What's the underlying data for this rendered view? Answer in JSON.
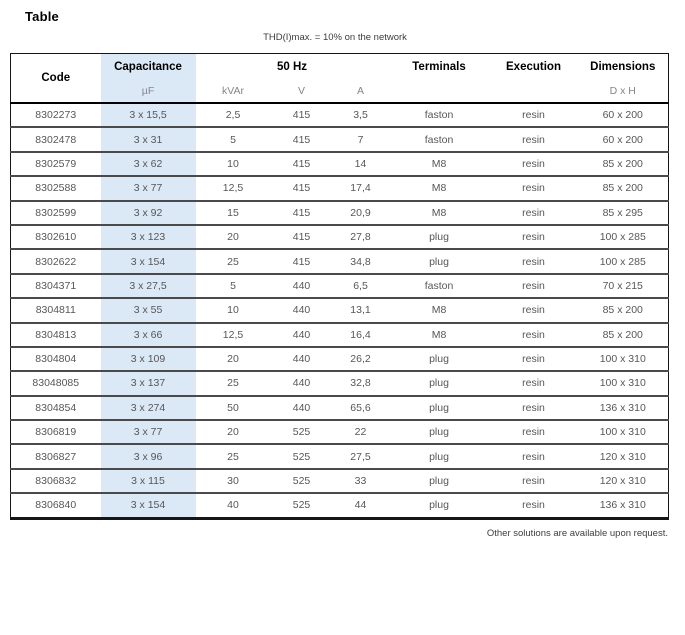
{
  "title": "Table",
  "note": "THD(I)max. = 10% on the network",
  "footer": "Other solutions are available upon request.",
  "colors": {
    "highlight_column": "#dbe8f5",
    "header_text": "#000000",
    "subheader_text": "#86868a",
    "body_text": "#57575a",
    "row_divider": "#4a4a4b",
    "outer_border": "#161616"
  },
  "table": {
    "header": {
      "code": "Code",
      "capacitance": "Capacitance",
      "freq": "50 Hz",
      "terminals": "Terminals",
      "execution": "Execution",
      "dimensions": "Dimensions",
      "sub": {
        "uF": "µF",
        "kvar": "kVAr",
        "v": "V",
        "a": "A",
        "dxh": "D x H"
      }
    },
    "rows": [
      [
        "8302273",
        "3 x 15,5",
        "2,5",
        "415",
        "3,5",
        "faston",
        "resin",
        "60 x 200"
      ],
      [
        "8302478",
        "3 x 31",
        "5",
        "415",
        "7",
        "faston",
        "resin",
        "60 x 200"
      ],
      [
        "8302579",
        "3 x 62",
        "10",
        "415",
        "14",
        "M8",
        "resin",
        "85 x 200"
      ],
      [
        "8302588",
        "3 x 77",
        "12,5",
        "415",
        "17,4",
        "M8",
        "resin",
        "85 x 200"
      ],
      [
        "8302599",
        "3 x 92",
        "15",
        "415",
        "20,9",
        "M8",
        "resin",
        "85 x 295"
      ],
      [
        "8302610",
        "3 x 123",
        "20",
        "415",
        "27,8",
        "plug",
        "resin",
        "100 x 285"
      ],
      [
        "8302622",
        "3 x 154",
        "25",
        "415",
        "34,8",
        "plug",
        "resin",
        "100 x 285"
      ],
      [
        "8304371",
        "3 x 27,5",
        "5",
        "440",
        "6,5",
        "faston",
        "resin",
        "70 x 215"
      ],
      [
        "8304811",
        "3 x 55",
        "10",
        "440",
        "13,1",
        "M8",
        "resin",
        "85 x 200"
      ],
      [
        "8304813",
        "3 x 66",
        "12,5",
        "440",
        "16,4",
        "M8",
        "resin",
        "85 x 200"
      ],
      [
        "8304804",
        "3 x 109",
        "20",
        "440",
        "26,2",
        "plug",
        "resin",
        "100 x 310"
      ],
      [
        "83048085",
        "3 x 137",
        "25",
        "440",
        "32,8",
        "plug",
        "resin",
        "100 x 310"
      ],
      [
        "8304854",
        "3 x 274",
        "50",
        "440",
        "65,6",
        "plug",
        "resin",
        "136 x 310"
      ],
      [
        "8306819",
        "3 x 77",
        "20",
        "525",
        "22",
        "plug",
        "resin",
        "100 x 310"
      ],
      [
        "8306827",
        "3 x 96",
        "25",
        "525",
        "27,5",
        "plug",
        "resin",
        "120 x 310"
      ],
      [
        "8306832",
        "3 x 115",
        "30",
        "525",
        "33",
        "plug",
        "resin",
        "120 x 310"
      ],
      [
        "8306840",
        "3 x 154",
        "40",
        "525",
        "44",
        "plug",
        "resin",
        "136 x 310"
      ]
    ]
  }
}
